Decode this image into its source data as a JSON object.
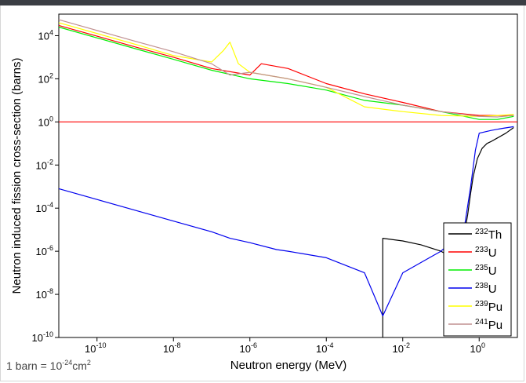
{
  "chart_data": {
    "type": "line",
    "title": "",
    "xlabel": "Neutron energy (MeV)",
    "ylabel": "Neutron induced fission cross-section (barns)",
    "xscale": "log",
    "yscale": "log",
    "xlim": [
      1e-11,
      10.0
    ],
    "ylim": [
      1e-10,
      100000.0
    ],
    "x_ticks": [
      {
        "value": 1e-10,
        "base": "10",
        "exp": "-10"
      },
      {
        "value": 1e-08,
        "base": "10",
        "exp": "-8"
      },
      {
        "value": 1e-06,
        "base": "10",
        "exp": "-6"
      },
      {
        "value": 0.0001,
        "base": "10",
        "exp": "-4"
      },
      {
        "value": 0.01,
        "base": "10",
        "exp": "-2"
      },
      {
        "value": 1,
        "base": "10",
        "exp": "0"
      }
    ],
    "y_ticks": [
      {
        "value": 1e-10,
        "base": "10",
        "exp": "-10"
      },
      {
        "value": 1e-08,
        "base": "10",
        "exp": "-8"
      },
      {
        "value": 1e-06,
        "base": "10",
        "exp": "-6"
      },
      {
        "value": 0.0001,
        "base": "10",
        "exp": "-4"
      },
      {
        "value": 0.01,
        "base": "10",
        "exp": "-2"
      },
      {
        "value": 1,
        "base": "10",
        "exp": "0"
      },
      {
        "value": 100.0,
        "base": "10",
        "exp": "2"
      },
      {
        "value": 10000.0,
        "base": "10",
        "exp": "4"
      }
    ],
    "reference_line": {
      "y": 1,
      "color": "#ff0000"
    },
    "legend_position": "bottom-right",
    "series": [
      {
        "name": "Th",
        "mass": "232",
        "color": "#000000",
        "x": [
          0.003,
          0.003,
          0.003,
          0.01,
          0.03,
          0.1,
          0.2,
          0.4,
          0.5,
          0.6,
          0.7,
          0.9,
          1.2,
          1.6,
          2,
          3,
          5,
          8
        ],
        "y": [
          1e-10,
          1e-10,
          4e-06,
          3e-06,
          2e-06,
          1e-06,
          5e-07,
          5e-06,
          5e-05,
          0.0005,
          0.003,
          0.02,
          0.06,
          0.1,
          0.12,
          0.18,
          0.3,
          0.55
        ]
      },
      {
        "name": "U",
        "mass": "233",
        "color": "#ff0000",
        "x": [
          1e-11,
          1e-09,
          1e-08,
          1e-07,
          1e-06,
          2e-06,
          1e-05,
          0.0001,
          0.001,
          0.01,
          0.1,
          1,
          3,
          8
        ],
        "y": [
          30000,
          3000,
          1000,
          300,
          150,
          500,
          300,
          60,
          20,
          8,
          3,
          2,
          2,
          2
        ]
      },
      {
        "name": "U",
        "mass": "235",
        "color": "#00ee00",
        "x": [
          1e-11,
          1e-09,
          1e-08,
          1e-07,
          1e-06,
          1e-05,
          0.0001,
          0.001,
          0.01,
          0.1,
          1,
          3,
          8
        ],
        "y": [
          25000,
          2500,
          800,
          250,
          100,
          60,
          30,
          10,
          6,
          3,
          1.3,
          1.3,
          1.8
        ]
      },
      {
        "name": "U",
        "mass": "238",
        "color": "#0000ee",
        "x": [
          1e-11,
          1e-09,
          1e-08,
          1e-07,
          3e-07,
          1e-06,
          5e-06,
          1e-05,
          0.0001,
          0.001,
          0.003,
          0.01,
          0.05,
          0.1,
          0.2,
          0.4,
          0.6,
          0.8,
          1,
          2,
          4,
          8
        ],
        "y": [
          0.0008,
          8e-05,
          2.5e-05,
          8e-06,
          4e-06,
          2.5e-06,
          1.2e-06,
          1e-06,
          5e-07,
          1e-07,
          1e-09,
          1e-07,
          5e-07,
          1e-06,
          3e-06,
          1e-05,
          0.001,
          0.05,
          0.3,
          0.4,
          0.5,
          0.6
        ]
      },
      {
        "name": "Pu",
        "mass": "239",
        "color": "#ffff00",
        "x": [
          1e-11,
          1e-09,
          1e-08,
          1e-07,
          2e-07,
          3e-07,
          5e-07,
          1e-06,
          1e-05,
          0.0001,
          0.001,
          0.01,
          0.1,
          1,
          3,
          8
        ],
        "y": [
          40000,
          4000,
          1200,
          600,
          2000,
          5000,
          500,
          200,
          100,
          40,
          5,
          3,
          2,
          1.8,
          2,
          2.2
        ]
      },
      {
        "name": "Pu",
        "mass": "241",
        "color": "#c09090",
        "x": [
          1e-11,
          1e-09,
          1e-08,
          1e-07,
          3e-07,
          1e-06,
          1e-05,
          0.0001,
          0.001,
          0.01,
          0.1,
          1,
          3,
          8
        ],
        "y": [
          55000,
          5500,
          1800,
          500,
          150,
          200,
          100,
          40,
          15,
          6,
          3,
          1.8,
          1.7,
          2
        ]
      }
    ]
  },
  "footnote": {
    "prefix": "1 barn = 10",
    "exp": "-24",
    "suffix": "cm",
    "unit_exp": "2"
  }
}
